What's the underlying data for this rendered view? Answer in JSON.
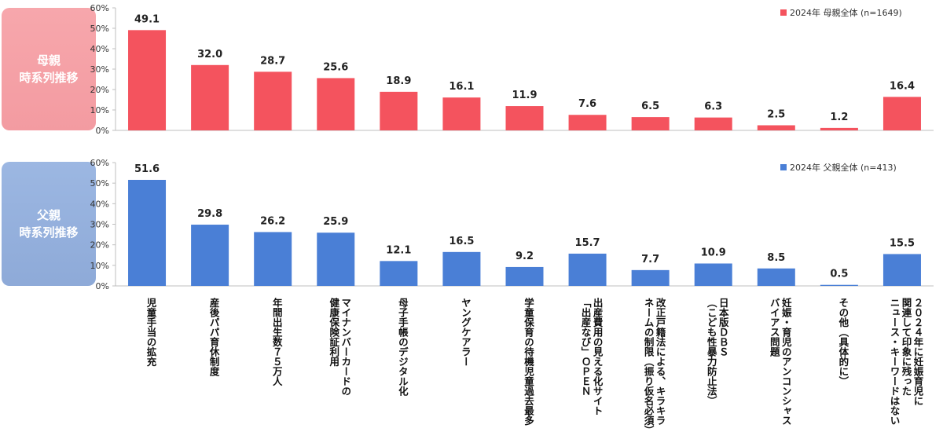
{
  "panels": [
    {
      "side_label_line1": "母親",
      "side_label_line2": "時系列推移"
    },
    {
      "side_label_line1": "父親",
      "side_label_line2": "時系列推移"
    }
  ],
  "chart_data": [
    {
      "type": "bar",
      "categories": [
        "児童手当の拡充",
        "産後パパ育休制度",
        "年間出生数７５万人",
        "マイナンバーカードの\n健康保険証利用",
        "母子手帳のデジタル化",
        "ヤングケアラー",
        "学童保育の待機児童過去最多",
        "出産費用の見える化サイト\n「出産なび」ＯＰＥＮ",
        "改正戸籍法による、キラキラ\nネームの制限（振り仮名必須）",
        "日本版ＤＢＳ\n（こども性暴力防止法）",
        "妊娠・育児のアンコンシャス\nバイアス問題",
        "その他（具体的に）",
        "２０２４年に妊娠育児に\n関連して印象に残った\nニュース・キーワードはない"
      ],
      "series": [
        {
          "name": "2024年  母親全体 (n=1649)",
          "values": [
            49.1,
            32.0,
            28.7,
            25.6,
            18.9,
            16.1,
            11.9,
            7.6,
            6.5,
            6.3,
            2.5,
            1.2,
            16.4
          ],
          "color": "#f4535e"
        }
      ],
      "ylim": [
        0,
        60
      ],
      "yticks": [
        "0%",
        "10%",
        "20%",
        "30%",
        "40%",
        "50%",
        "60%"
      ],
      "legend_position": "top-right"
    },
    {
      "type": "bar",
      "categories": [
        "児童手当の拡充",
        "産後パパ育休制度",
        "年間出生数７５万人",
        "マイナンバーカードの\n健康保険証利用",
        "母子手帳のデジタル化",
        "ヤングケアラー",
        "学童保育の待機児童過去最多",
        "出産費用の見える化サイト\n「出産なび」ＯＰＥＮ",
        "改正戸籍法による、キラキラ\nネームの制限（振り仮名必須）",
        "日本版ＤＢＳ\n（こども性暴力防止法）",
        "妊娠・育児のアンコンシャス\nバイアス問題",
        "その他（具体的に）",
        "２０２４年に妊娠育児に\n関連して印象に残った\nニュース・キーワードはない"
      ],
      "series": [
        {
          "name": "2024年  父親全体 (n=413)",
          "values": [
            51.6,
            29.8,
            26.2,
            25.9,
            12.1,
            16.5,
            9.2,
            15.7,
            7.7,
            10.9,
            8.5,
            0.5,
            15.5
          ],
          "color": "#4a7fd6"
        }
      ],
      "ylim": [
        0,
        60
      ],
      "yticks": [
        "0%",
        "10%",
        "20%",
        "30%",
        "40%",
        "50%",
        "60%"
      ],
      "legend_position": "top-right"
    }
  ]
}
